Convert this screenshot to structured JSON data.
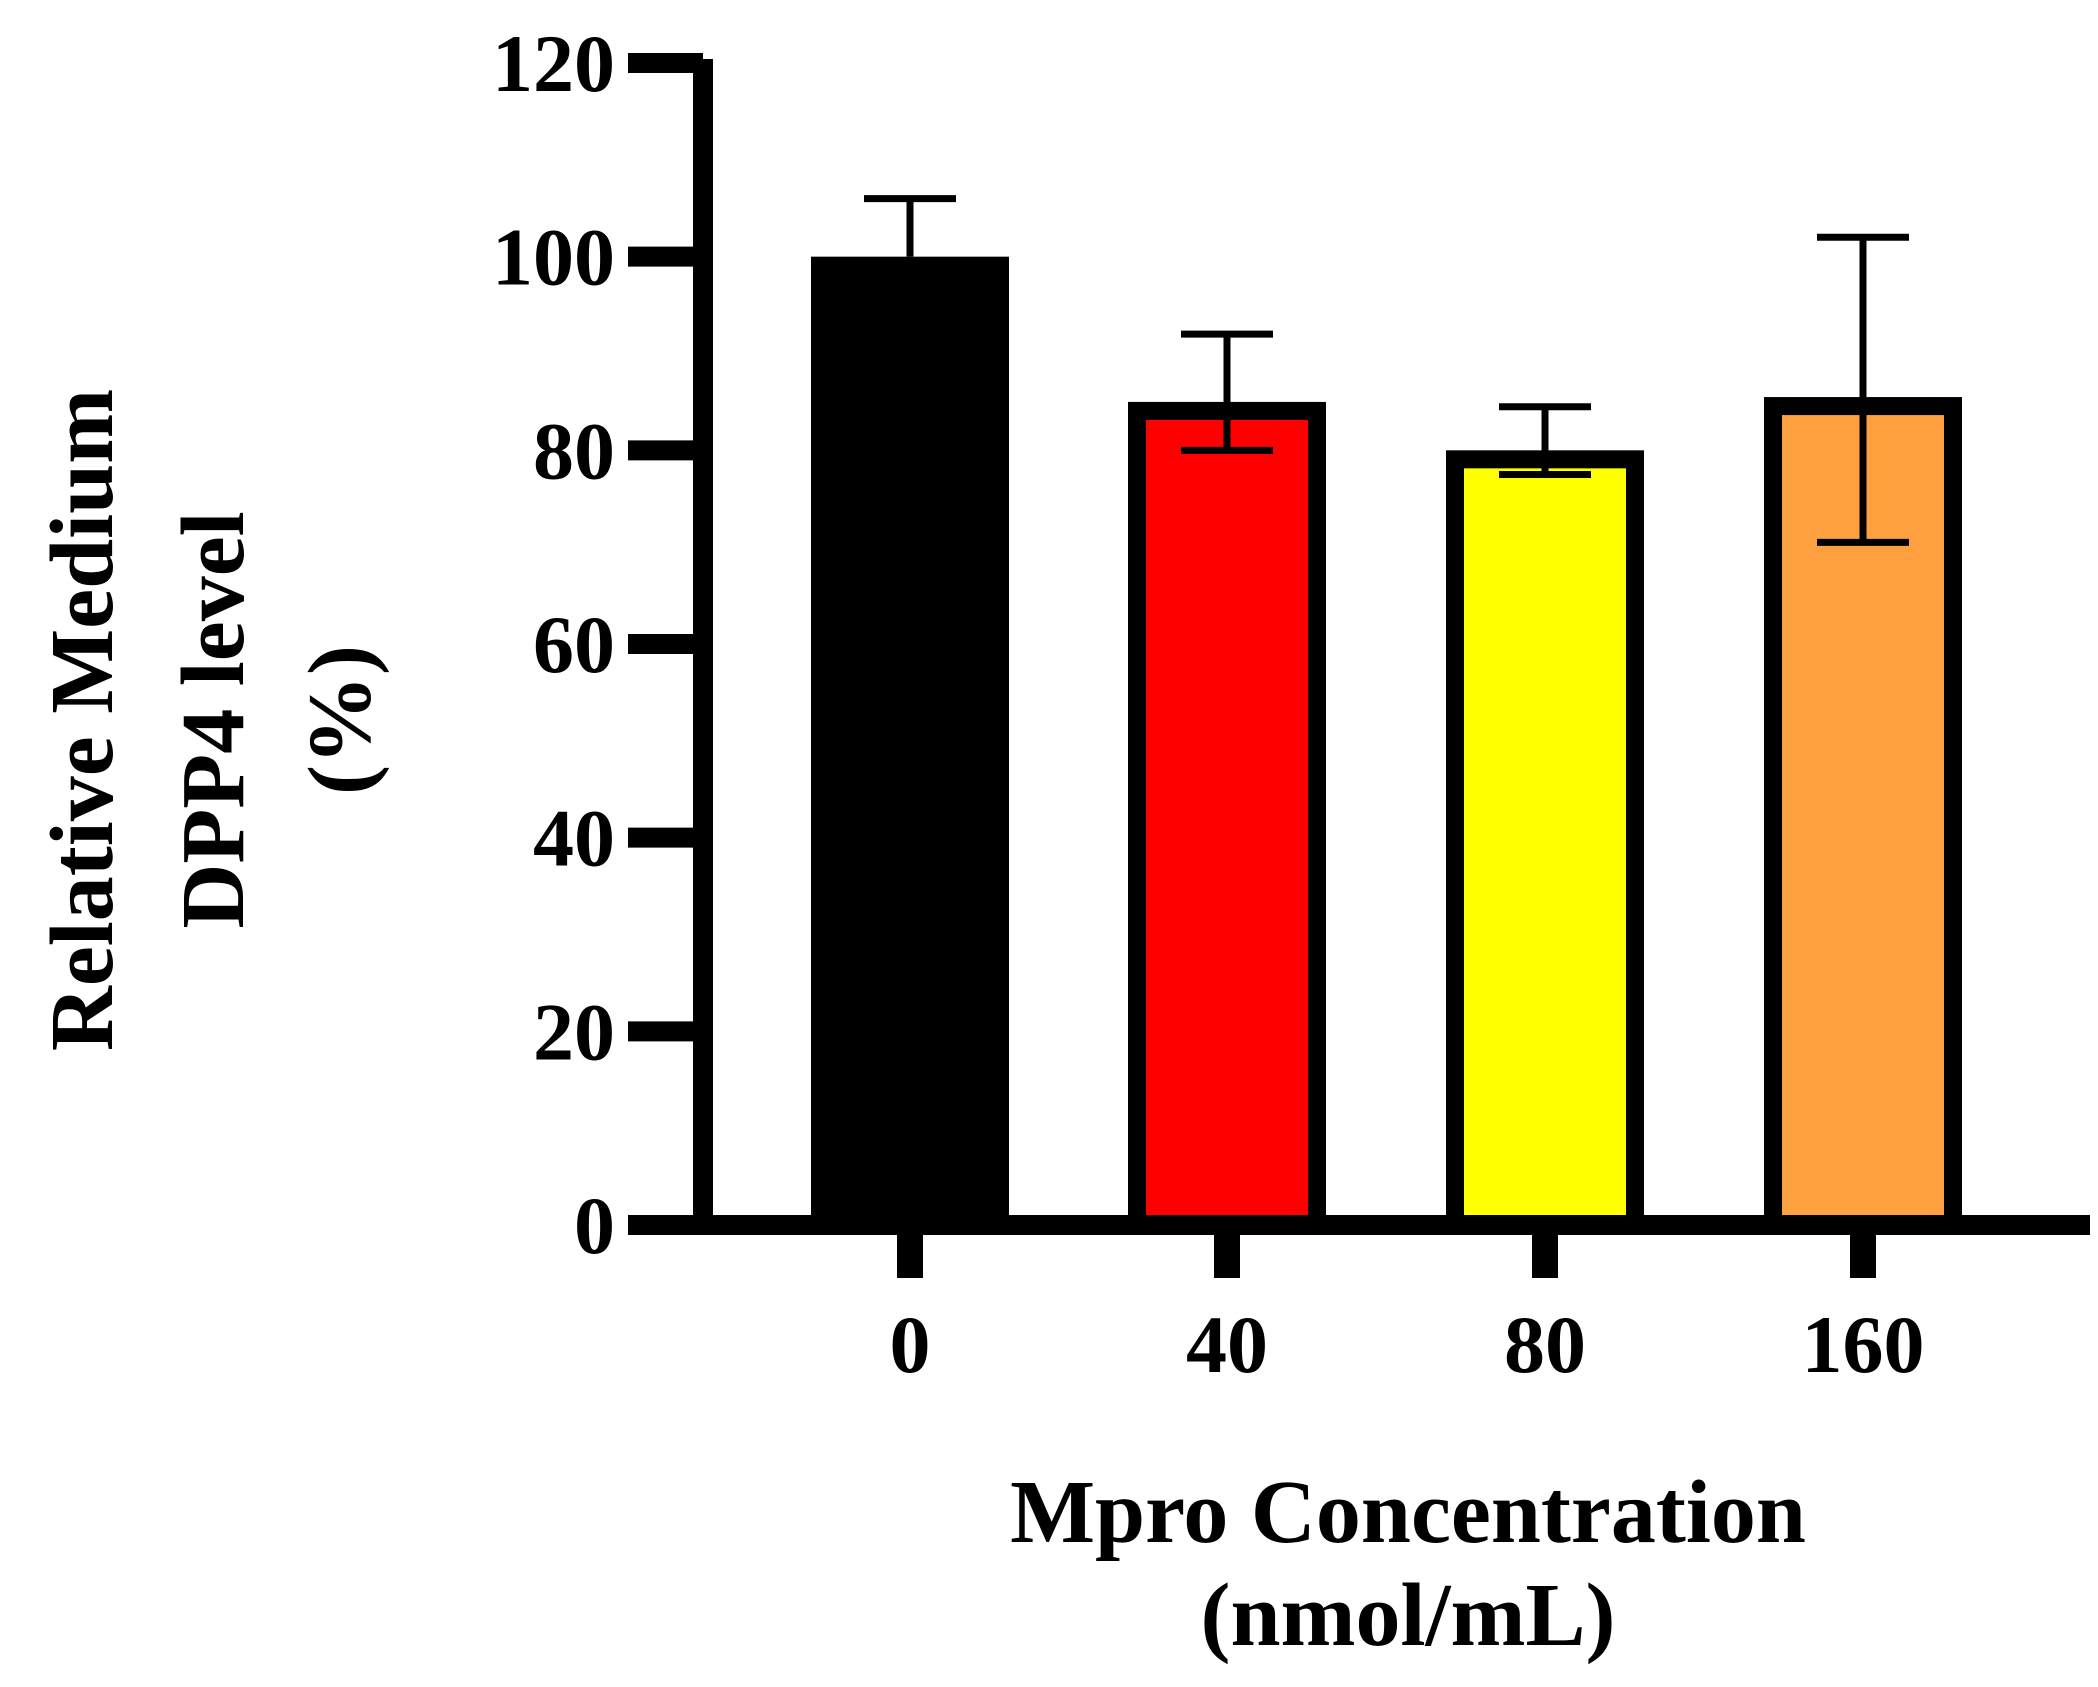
{
  "chart_data": {
    "type": "bar",
    "categories": [
      "0",
      "40",
      "80",
      "160"
    ],
    "values": [
      100,
      85,
      80,
      85.5
    ],
    "error_high": [
      106,
      92,
      84.5,
      102
    ],
    "error_low": [
      100,
      80,
      77.5,
      70.5
    ],
    "colors": [
      "#000000",
      "#ff0000",
      "#ffff00",
      "#ffa040"
    ],
    "ylabel_lines": [
      "Relative Medium",
      "DPP4 level",
      "(%)"
    ],
    "xlabel_lines": [
      "Mpro Concentration",
      "(nmol/mL)"
    ],
    "ylim": [
      0,
      120
    ],
    "yticks": [
      0,
      20,
      40,
      60,
      80,
      100,
      120
    ],
    "ytick_labels": [
      "0",
      "20",
      "40",
      "60",
      "80",
      "100",
      "120"
    ],
    "grid": false,
    "legend": "none"
  }
}
